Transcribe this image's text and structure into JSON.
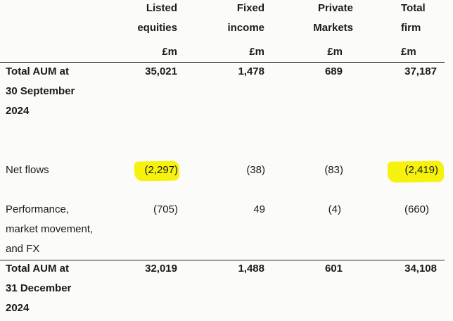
{
  "header": {
    "columns": [
      {
        "line1": "Listed",
        "line2": "equities",
        "unit": "£m"
      },
      {
        "line1": "Fixed",
        "line2": "income",
        "unit": "£m"
      },
      {
        "line1": "Private",
        "line2": "Markets",
        "unit": "£m"
      },
      {
        "line1": "Total",
        "line2": "firm",
        "unit": "£m"
      }
    ]
  },
  "rows": [
    {
      "label_lines": [
        "Total AUM at",
        "30 September",
        "2024"
      ],
      "values": [
        "35,021",
        "1,478",
        "689",
        "37,187"
      ]
    },
    {
      "label_lines": [
        "Net flows"
      ],
      "values": [
        "(2,297)",
        "(38)",
        "(83)",
        "(2,419)"
      ],
      "highlighted_columns": [
        0,
        3
      ],
      "highlight_color": "#f6f100"
    },
    {
      "label_lines": [
        "Performance,",
        "market movement,",
        "and FX"
      ],
      "values": [
        "(705)",
        "49",
        "(4)",
        "(660)"
      ]
    },
    {
      "label_lines": [
        "Total AUM at",
        "31 December",
        "2024"
      ],
      "values": [
        "32,019",
        "1,488",
        "601",
        "34,108"
      ]
    }
  ]
}
